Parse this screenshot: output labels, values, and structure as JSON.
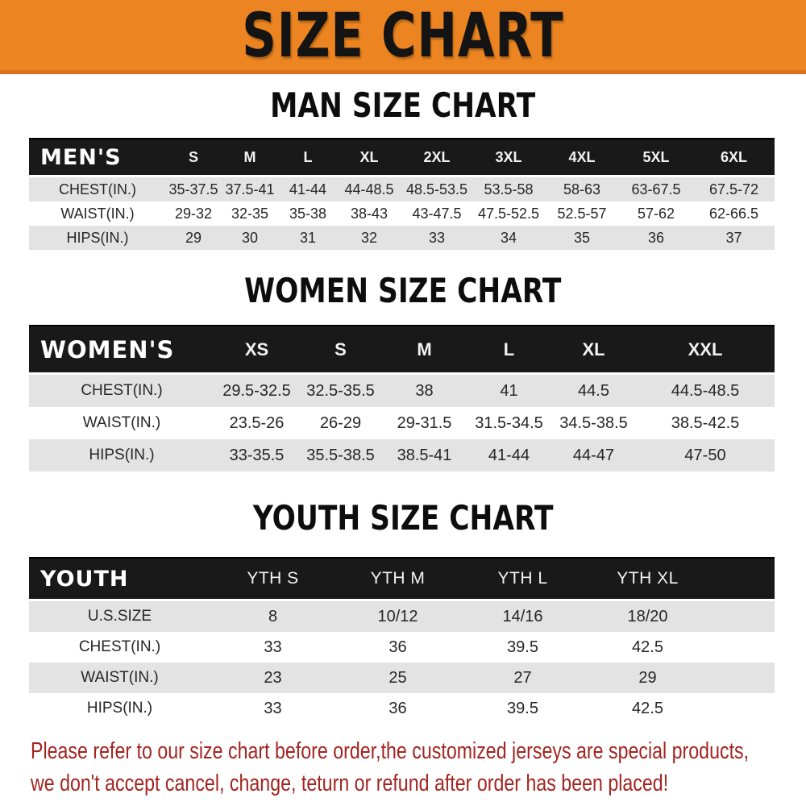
{
  "banner": {
    "title": "SIZE CHART",
    "bg_color": "#EC8521",
    "text_color": "#141414"
  },
  "colors": {
    "table_header_bg": "#191919",
    "row_stripe": "#E3E3E3",
    "footer_red": "#A32420"
  },
  "sections": [
    {
      "heading": "MAN SIZE CHART",
      "table": {
        "header_label": "MEN'S",
        "columns": [
          "S",
          "M",
          "L",
          "XL",
          "2XL",
          "3XL",
          "4XL",
          "5XL",
          "6XL"
        ],
        "rows": [
          {
            "label": "CHEST(IN.)",
            "values": [
              "35-37.5",
              "37.5-41",
              "41-44",
              "44-48.5",
              "48.5-53.5",
              "53.5-58",
              "58-63",
              "63-67.5",
              "67.5-72"
            ]
          },
          {
            "label": "WAIST(IN.)",
            "values": [
              "29-32",
              "32-35",
              "35-38",
              "38-43",
              "43-47.5",
              "47.5-52.5",
              "52.5-57",
              "57-62",
              "62-66.5"
            ]
          },
          {
            "label": "HIPS(IN.)",
            "values": [
              "29",
              "30",
              "31",
              "32",
              "33",
              "34",
              "35",
              "36",
              "37"
            ]
          }
        ]
      }
    },
    {
      "heading": "WOMEN SIZE CHART",
      "table": {
        "header_label": "WOMEN'S",
        "columns": [
          "XS",
          "S",
          "M",
          "L",
          "XL",
          "XXL"
        ],
        "rows": [
          {
            "label": "CHEST(IN.)",
            "values": [
              "29.5-32.5",
              "32.5-35.5",
              "38",
              "41",
              "44.5",
              "44.5-48.5"
            ]
          },
          {
            "label": "WAIST(IN.)",
            "values": [
              "23.5-26",
              "26-29",
              "29-31.5",
              "31.5-34.5",
              "34.5-38.5",
              "38.5-42.5"
            ]
          },
          {
            "label": "HIPS(IN.)",
            "values": [
              "33-35.5",
              "35.5-38.5",
              "38.5-41",
              "41-44",
              "44-47",
              "47-50"
            ]
          }
        ]
      }
    },
    {
      "heading": "YOUTH SIZE CHART",
      "table": {
        "header_label": "YOUTH",
        "columns": [
          "YTH S",
          "YTH M",
          "YTH L",
          "YTH XL"
        ],
        "rows": [
          {
            "label": "U.S.SIZE",
            "values": [
              "8",
              "10/12",
              "14/16",
              "18/20"
            ]
          },
          {
            "label": "CHEST(IN.)",
            "values": [
              "33",
              "36",
              "39.5",
              "42.5"
            ]
          },
          {
            "label": "WAIST(IN.)",
            "values": [
              "23",
              "25",
              "27",
              "29"
            ]
          },
          {
            "label": "HIPS(IN.)",
            "values": [
              "33",
              "36",
              "39.5",
              "42.5"
            ]
          }
        ]
      }
    }
  ],
  "footer": {
    "line1": "Please refer to our size chart before order,the customized jerseys are special products,",
    "line2": "we don't accept cancel, change, teturn or refund after order has been placed!"
  }
}
